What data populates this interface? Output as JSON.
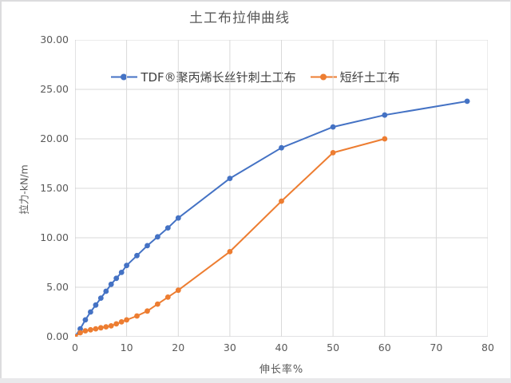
{
  "chart_data": {
    "type": "line",
    "title": "土工布拉伸曲线",
    "xlabel": "伸长率%",
    "ylabel": "拉力-kN/m",
    "xlim": [
      0,
      80
    ],
    "ylim": [
      0,
      30
    ],
    "x_tick_step": 10,
    "y_tick_step": 5,
    "x_tick_labels": [
      "0",
      "10",
      "20",
      "30",
      "40",
      "50",
      "60",
      "70",
      "80"
    ],
    "y_tick_labels": [
      "0.00",
      "5.00",
      "10.00",
      "15.00",
      "20.00",
      "25.00",
      "30.00"
    ],
    "grid": true,
    "legend_position": "top-center",
    "colors": {
      "gridline": "#d9d9d9",
      "axis_line": "#c6c6c8",
      "text": "#595959"
    },
    "series": [
      {
        "name": "TDF®聚丙烯长丝针刺土工布",
        "color": "#4472C4",
        "marker": "circle",
        "x": [
          0,
          1,
          2,
          3,
          4,
          5,
          6,
          7,
          8,
          9,
          10,
          12,
          14,
          16,
          18,
          20,
          30,
          40,
          50,
          60,
          76
        ],
        "y": [
          0,
          0.8,
          1.7,
          2.5,
          3.2,
          3.9,
          4.6,
          5.3,
          5.9,
          6.5,
          7.2,
          8.2,
          9.2,
          10.1,
          11.0,
          12.0,
          16.0,
          19.1,
          21.2,
          22.4,
          23.8
        ]
      },
      {
        "name": "短纤土工布",
        "color": "#ED7D31",
        "marker": "circle",
        "x": [
          0,
          1,
          2,
          3,
          4,
          5,
          6,
          7,
          8,
          9,
          10,
          12,
          14,
          16,
          18,
          20,
          30,
          40,
          50,
          60
        ],
        "y": [
          0,
          0.4,
          0.6,
          0.7,
          0.8,
          0.9,
          1.0,
          1.1,
          1.3,
          1.5,
          1.7,
          2.1,
          2.6,
          3.3,
          4.0,
          4.7,
          8.6,
          13.7,
          18.6,
          20.0
        ]
      }
    ]
  }
}
